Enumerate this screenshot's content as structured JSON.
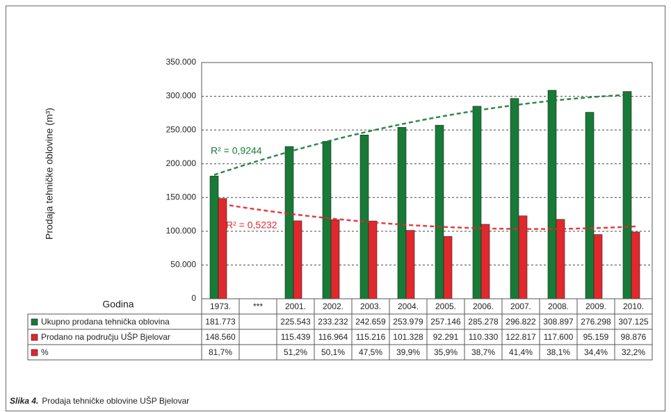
{
  "chart_data": {
    "type": "bar",
    "y_label": "Prodaja tehničke oblovine (m³)",
    "x_label": "Godina",
    "categories": [
      "1973.",
      "***",
      "2001.",
      "2002.",
      "2003.",
      "2004.",
      "2005.",
      "2006.",
      "2007.",
      "2008.",
      "2009.",
      "2010."
    ],
    "series": [
      {
        "name": "Ukupno prodana tehnička oblovina",
        "color": "#177a36",
        "values": [
          181773,
          null,
          225543,
          233232,
          242659,
          253979,
          257146,
          285278,
          296822,
          308897,
          276298,
          307125
        ],
        "value_labels": [
          "181.773",
          null,
          "225.543",
          "233.232",
          "242.659",
          "253.979",
          "257.146",
          "285.278",
          "296.822",
          "308.897",
          "276.298",
          "307.125"
        ]
      },
      {
        "name": "Prodano na području UŠP Bjelovar",
        "color": "#e0282d",
        "values": [
          148560,
          null,
          115439,
          116964,
          115216,
          101328,
          92291,
          110330,
          122817,
          117600,
          95159,
          98876
        ],
        "value_labels": [
          "148.560",
          null,
          "115.439",
          "116.964",
          "115.216",
          "101.328",
          "92.291",
          "110.330",
          "122.817",
          "117.600",
          "95.159",
          "98.876"
        ]
      }
    ],
    "table_row": {
      "name": "%",
      "color": "#e0282d",
      "values": [
        81.7,
        null,
        51.2,
        50.1,
        47.5,
        39.9,
        35.9,
        38.7,
        41.4,
        38.1,
        34.4,
        32.2
      ],
      "value_labels": [
        "81,7%",
        null,
        "51,2%",
        "50,1%",
        "47,5%",
        "39,9%",
        "35,9%",
        "38,7%",
        "41,4%",
        "38,1%",
        "34,4%",
        "32,2%"
      ]
    },
    "trendline": "polynomial",
    "annotations": [
      "R² = 0,9244",
      "R² = 0,5232"
    ],
    "ylim": [
      0,
      350000
    ],
    "yticks": [
      0,
      {
        "value": 50000,
        "label": "50.000"
      },
      {
        "value": 100000,
        "label": "100.000"
      },
      {
        "value": 150000,
        "label": "150.000"
      },
      {
        "value": 200000,
        "label": "200.000"
      },
      {
        "value": 250000,
        "label": "250.000"
      },
      {
        "value": 300000,
        "label": "300.000"
      },
      {
        "value": 350000,
        "label": "350.000"
      }
    ],
    "grid": true,
    "caption_label": "Slika 4.",
    "caption": "Prodaja tehničke oblovine UŠP Bjelovar"
  }
}
